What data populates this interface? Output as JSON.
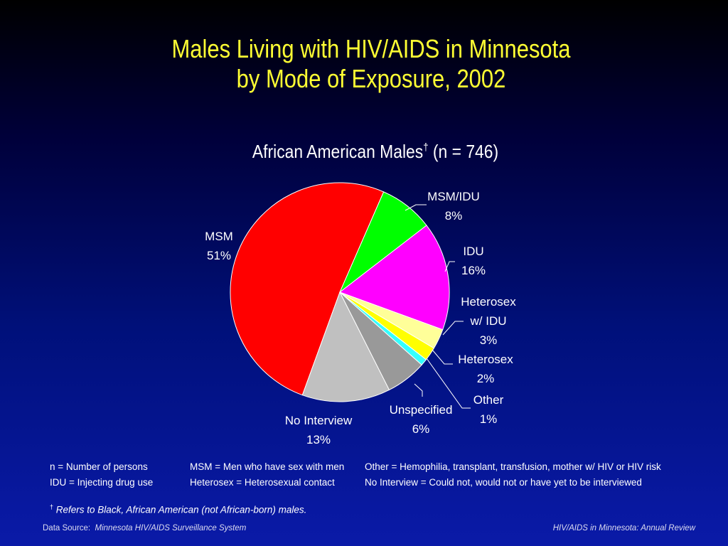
{
  "title": {
    "line1": "Males Living with HIV/AIDS in Minnesota",
    "line2": "by Mode of Exposure, 2002"
  },
  "subtitle": {
    "text": "African American Males",
    "dagger": "†",
    "n_text": " (n = 746)"
  },
  "chart_data": {
    "type": "pie",
    "title": "African American Males† (n = 746)",
    "n": 746,
    "slices": [
      {
        "label": "MSM",
        "value": 51,
        "pct_label": "51%",
        "color": "#ff0000"
      },
      {
        "label": "MSM/IDU",
        "value": 8,
        "pct_label": "8%",
        "color": "#00ff00"
      },
      {
        "label": "IDU",
        "value": 16,
        "pct_label": "16%",
        "color": "#ff00ff"
      },
      {
        "label": "Heterosex w/ IDU",
        "value": 3,
        "pct_label": "3%",
        "color": "#ffff99"
      },
      {
        "label": "Heterosex",
        "value": 2,
        "pct_label": "2%",
        "color": "#ffff00"
      },
      {
        "label": "Other",
        "value": 1,
        "pct_label": "1%",
        "color": "#33ffff"
      },
      {
        "label": "Unspecified",
        "value": 6,
        "pct_label": "6%",
        "color": "#999999"
      },
      {
        "label": "No Interview",
        "value": 13,
        "pct_label": "13%",
        "color": "#c0c0c0"
      }
    ]
  },
  "legend": {
    "col1": [
      "n = Number of persons",
      "IDU = Injecting drug use"
    ],
    "col2": [
      "MSM = Men who have sex with men",
      "Heterosex = Heterosexual contact"
    ],
    "col3": [
      "Other = Hemophilia, transplant, transfusion, mother w/ HIV or HIV risk",
      "No Interview = Could not, would not or have yet to be interviewed"
    ]
  },
  "footnote": {
    "dagger": "†",
    "text": "Refers to Black, African American (not African-born) males."
  },
  "source": {
    "prefix": "Data Source:",
    "name": "Minnesota HIV/AIDS Surveillance System"
  },
  "report": "HIV/AIDS in Minnesota: Annual Review"
}
